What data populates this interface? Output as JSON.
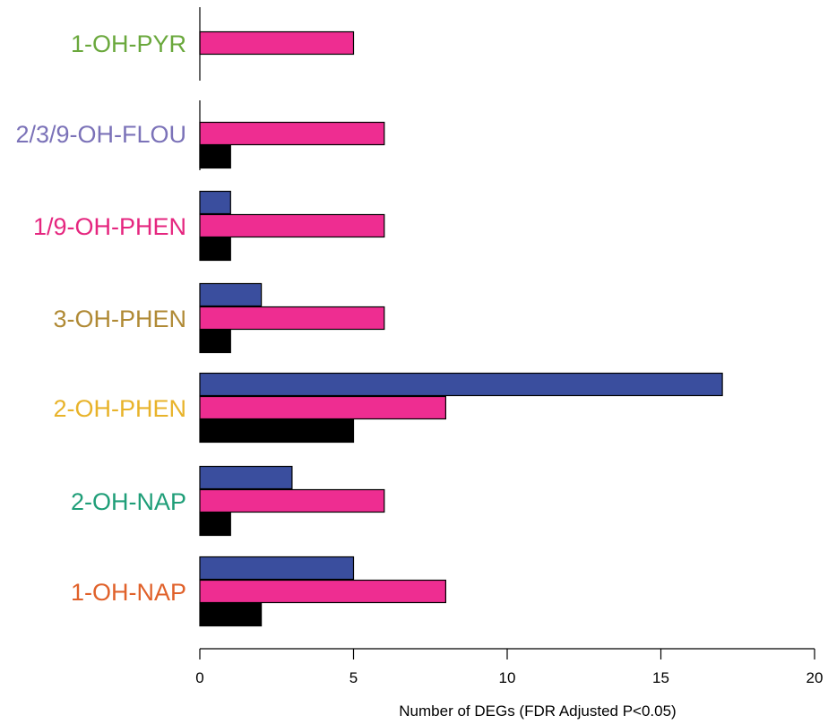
{
  "chart_data": {
    "type": "bar",
    "orientation": "horizontal",
    "title": "",
    "xlabel": "Number of DEGs (FDR Adjusted P<0.05)",
    "ylabel": "",
    "xlim": [
      0,
      20
    ],
    "xticks": [
      0,
      5,
      10,
      15,
      20
    ],
    "grid": false,
    "legend": "none",
    "categories": [
      "1-OH-PYR",
      "2/3/9-OH-FLOU",
      "1/9-OH-PHEN",
      "3-OH-PHEN",
      "2-OH-PHEN",
      "2-OH-NAP",
      "1-OH-NAP"
    ],
    "category_colors": [
      "#6aa83c",
      "#7b72b8",
      "#e5267f",
      "#b08a35",
      "#e8b32a",
      "#1f9e78",
      "#e0612a"
    ],
    "series": [
      {
        "color": "#3a4e9e",
        "values": [
          0,
          0,
          1,
          2,
          17,
          3,
          5
        ]
      },
      {
        "color": "#ee2d91",
        "values": [
          5,
          6,
          6,
          6,
          8,
          6,
          8
        ]
      },
      {
        "color": "#000000",
        "values": [
          0,
          1,
          1,
          1,
          5,
          1,
          2
        ]
      }
    ]
  }
}
